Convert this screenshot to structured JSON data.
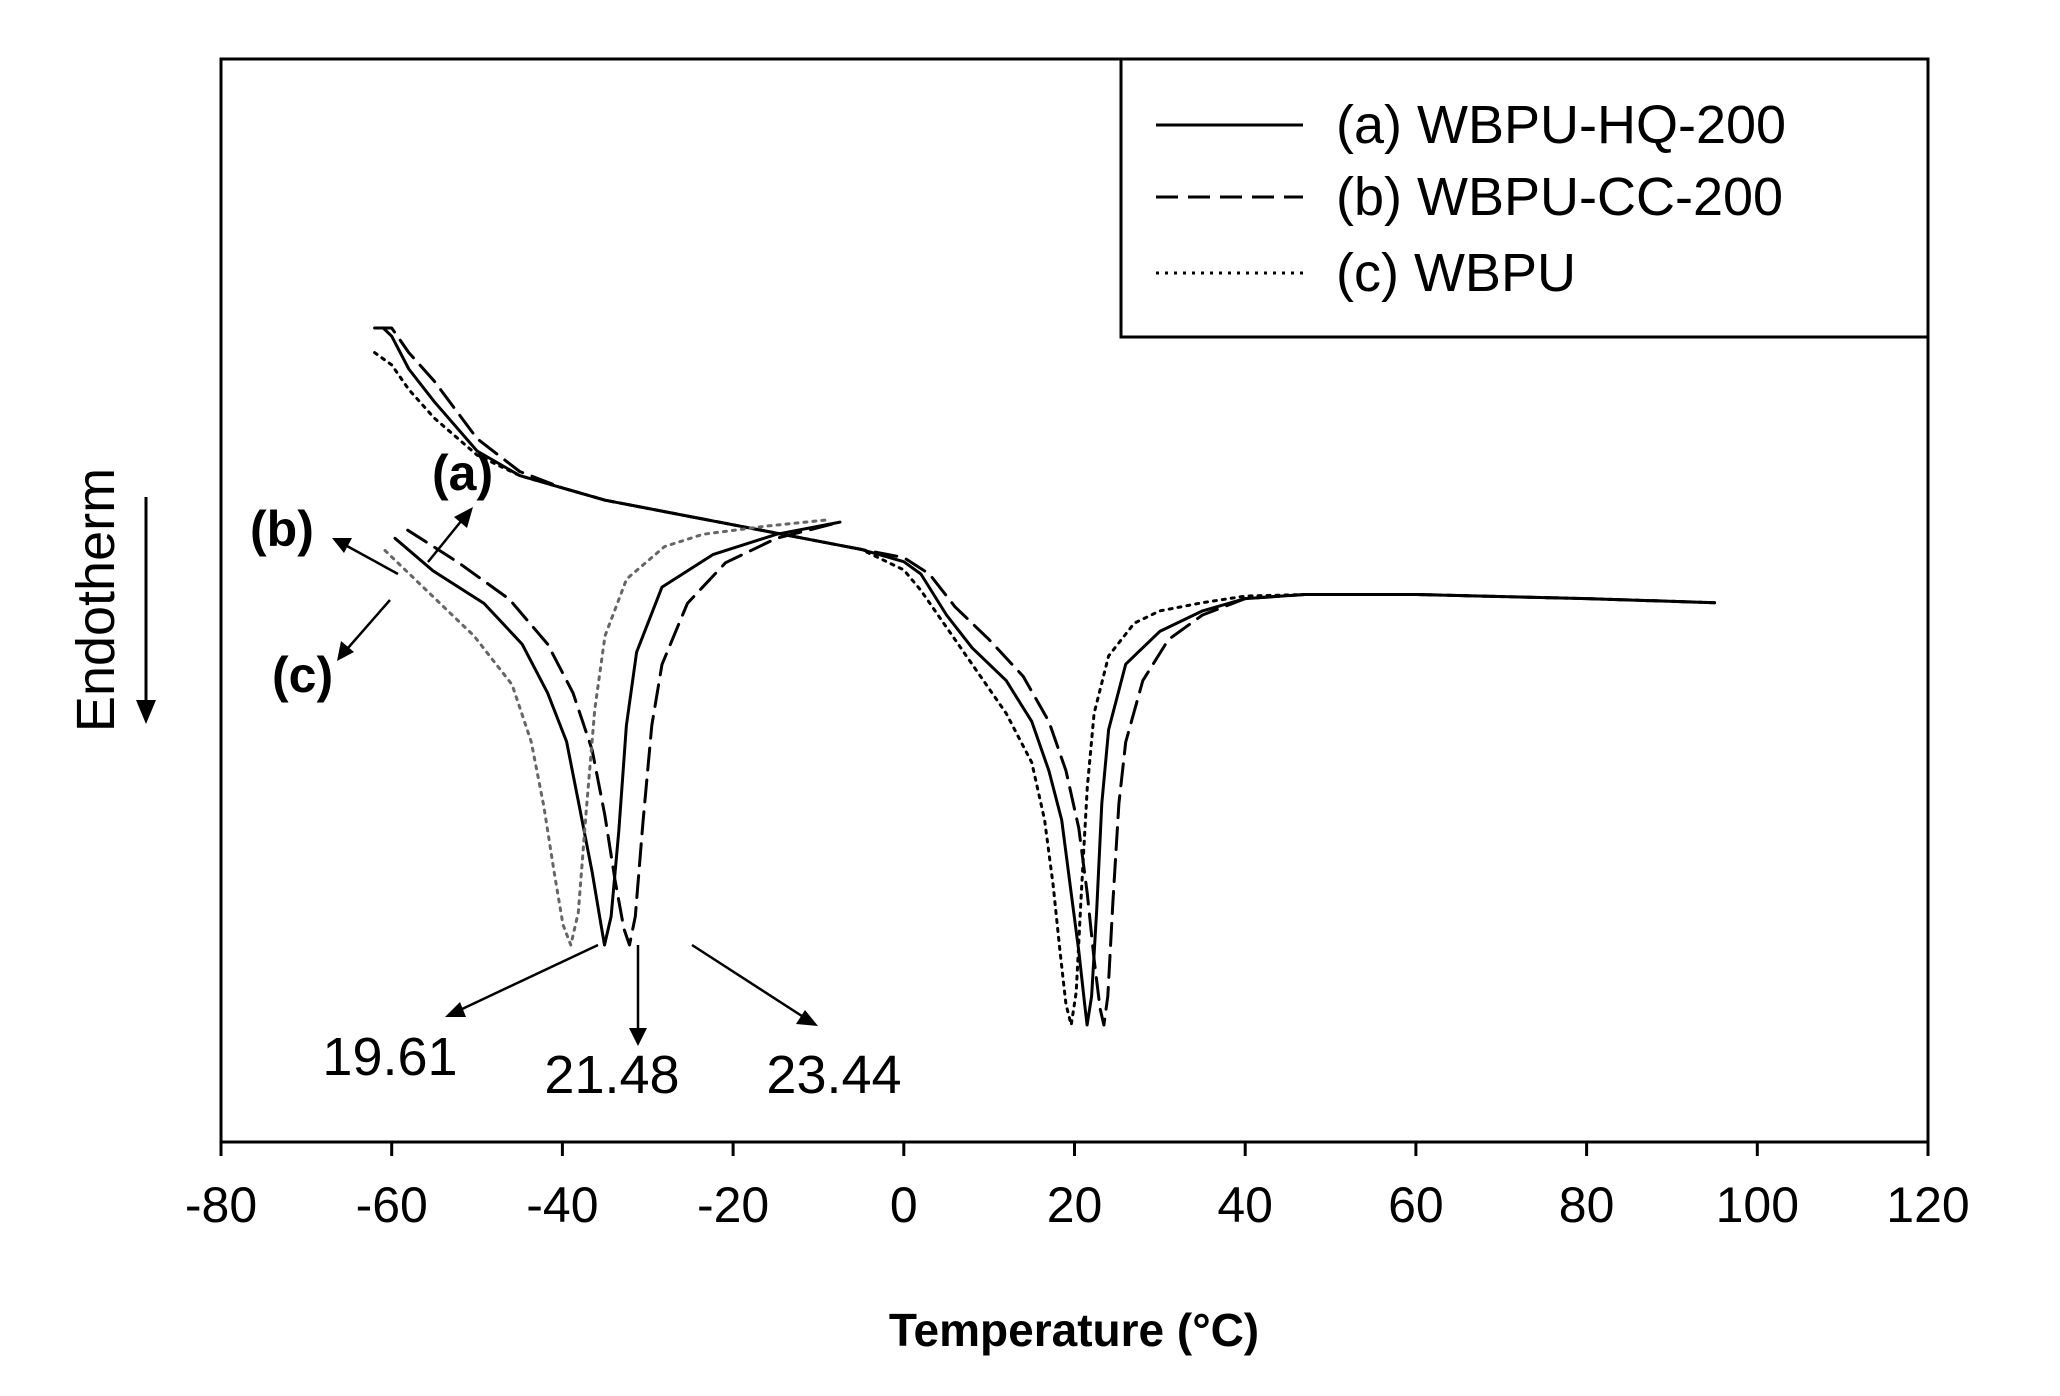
{
  "chart_data": {
    "type": "line",
    "title": "",
    "xlabel": "Temperature (°C)",
    "ylabel": "Endotherm",
    "xlim": [
      -80,
      120
    ],
    "x_ticks": [
      -80,
      -60,
      -40,
      -20,
      0,
      20,
      40,
      60,
      80,
      100,
      120
    ],
    "y_ticks": [],
    "grid": false,
    "legend_position": "top-right",
    "series": [
      {
        "name": "(a) WBPU-HQ-200",
        "style": "solid",
        "x": [
          -61,
          -60,
          -58,
          -55,
          -50,
          -45,
          -40,
          -35,
          -30,
          -25,
          -20,
          -15,
          -10,
          -5,
          0,
          2,
          5,
          8,
          12,
          15,
          17,
          18.5,
          19.5,
          20.5,
          21.2,
          21.48,
          22,
          22.6,
          23.2,
          24,
          26,
          30,
          35,
          40,
          47,
          60,
          80,
          95
        ],
        "y": [
          85.0,
          84.0,
          80.0,
          76.0,
          70.0,
          67.0,
          65.5,
          64.0,
          63.0,
          62.0,
          61.0,
          60.0,
          59.0,
          58.0,
          56.5,
          55.0,
          50.0,
          46.0,
          42.0,
          37.0,
          31.0,
          25.0,
          17.0,
          9.0,
          2.5,
          0.0,
          3.5,
          14.0,
          27.0,
          36.0,
          44.0,
          48.0,
          50.5,
          52.0,
          52.5,
          52.5,
          52.0,
          51.5
        ]
      },
      {
        "name": "(b) WBPU-CC-200",
        "style": "dashed",
        "x": [
          -62,
          -60,
          -58,
          -55,
          -50,
          -45,
          -40,
          -35,
          -30,
          -25,
          -20,
          -15,
          -10,
          -5,
          0,
          3,
          6,
          10,
          14,
          17,
          19,
          20.5,
          21.5,
          22.3,
          23.0,
          23.44,
          23.9,
          24.5,
          25.2,
          26,
          28,
          31,
          35,
          40,
          47,
          60,
          80,
          95
        ],
        "y": [
          85.0,
          85.0,
          82.0,
          78.5,
          71.5,
          67.5,
          65.5,
          64.0,
          63.0,
          62.0,
          61.0,
          60.0,
          59.0,
          58.0,
          57.0,
          55.0,
          51.0,
          47.0,
          42.5,
          37.0,
          31.0,
          24.0,
          16.0,
          8.0,
          2.0,
          0.0,
          3.5,
          15.0,
          27.0,
          34.5,
          42.0,
          47.0,
          50.0,
          52.0,
          52.5,
          52.5,
          52.0,
          51.5
        ]
      },
      {
        "name": "(c) WBPU",
        "style": "dotted",
        "x": [
          -62,
          -60,
          -58,
          -55,
          -50,
          -45,
          -40,
          -35,
          -30,
          -25,
          -20,
          -15,
          -10,
          -5,
          0,
          2,
          5,
          8,
          12,
          15,
          16.5,
          17.5,
          18.3,
          19.0,
          19.61,
          20.2,
          20.8,
          21.5,
          22.3,
          24,
          27,
          30,
          35,
          40,
          47,
          60,
          80,
          95
        ],
        "y": [
          82.0,
          80.5,
          77.5,
          74.0,
          69.5,
          67.0,
          65.5,
          64.0,
          63.0,
          62.0,
          61.0,
          60.0,
          59.0,
          58.0,
          55.5,
          53.0,
          48.5,
          44.0,
          38.0,
          32.0,
          25.0,
          17.0,
          9.0,
          2.5,
          0.0,
          4.0,
          16.0,
          29.0,
          38.0,
          45.0,
          49.0,
          50.5,
          51.5,
          52.3,
          52.5,
          52.5,
          52.0,
          51.5
        ]
      }
    ],
    "annotations": {
      "peak_values": [
        "19.61",
        "21.48",
        "23.44"
      ],
      "curve_labels": [
        "(a)",
        "(b)",
        "(c)"
      ]
    }
  }
}
